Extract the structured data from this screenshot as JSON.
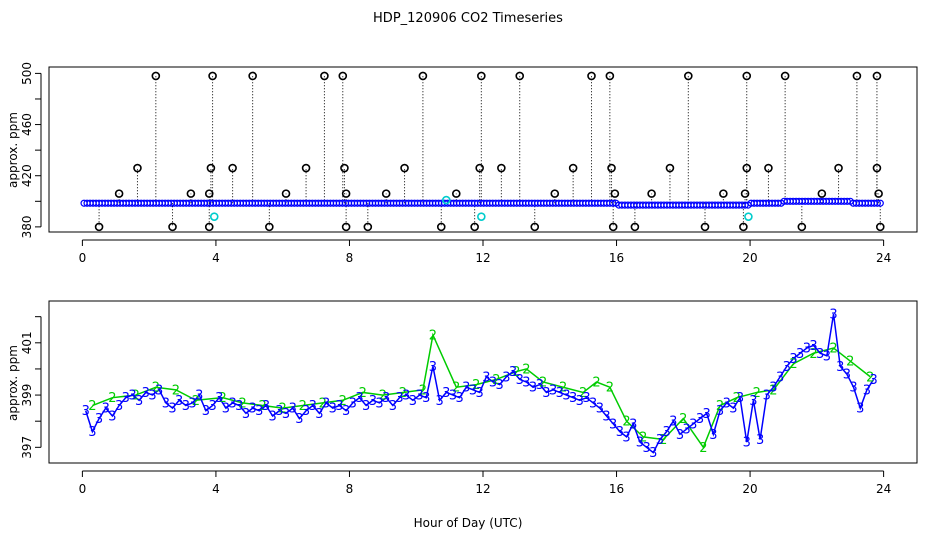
{
  "chart_data": {
    "type": "scatter",
    "title": "HDP_120906  CO2 Timeseries",
    "xlabel": "Hour of Day (UTC)",
    "colors": {
      "lev3": "#0000ff",
      "lev2": "#00cc00",
      "spike": "#000000",
      "spike_cyan": "#00cccc"
    },
    "x_ticks": [
      "0",
      "4",
      "8",
      "12",
      "16",
      "20",
      "24"
    ],
    "panels": [
      {
        "name": "full-range",
        "ylabel": "approx. ppm",
        "xlim": [
          -1,
          25
        ],
        "ylim": [
          376,
          505
        ],
        "y_ticks": [
          "380",
          "420",
          "460",
          "500"
        ],
        "y_ticks_minor": [
          "400",
          "440",
          "480"
        ],
        "baseline_ppm": 398.5,
        "spikes_high": [
          {
            "x": 2.2,
            "y": 498
          },
          {
            "x": 3.9,
            "y": 498
          },
          {
            "x": 5.1,
            "y": 498
          },
          {
            "x": 7.25,
            "y": 498
          },
          {
            "x": 7.8,
            "y": 498
          },
          {
            "x": 10.2,
            "y": 498
          },
          {
            "x": 11.95,
            "y": 498
          },
          {
            "x": 13.1,
            "y": 498
          },
          {
            "x": 15.25,
            "y": 498
          },
          {
            "x": 15.8,
            "y": 498
          },
          {
            "x": 18.15,
            "y": 498
          },
          {
            "x": 19.9,
            "y": 498
          },
          {
            "x": 21.05,
            "y": 498
          },
          {
            "x": 23.2,
            "y": 498
          },
          {
            "x": 23.8,
            "y": 498
          }
        ],
        "spikes_mid": [
          {
            "x": 1.65,
            "y": 426
          },
          {
            "x": 3.85,
            "y": 426
          },
          {
            "x": 4.5,
            "y": 426
          },
          {
            "x": 6.7,
            "y": 426
          },
          {
            "x": 7.85,
            "y": 426
          },
          {
            "x": 9.65,
            "y": 426
          },
          {
            "x": 11.9,
            "y": 426
          },
          {
            "x": 12.55,
            "y": 426
          },
          {
            "x": 14.7,
            "y": 426
          },
          {
            "x": 15.85,
            "y": 426
          },
          {
            "x": 17.6,
            "y": 426
          },
          {
            "x": 19.9,
            "y": 426
          },
          {
            "x": 20.55,
            "y": 426
          },
          {
            "x": 22.65,
            "y": 426
          },
          {
            "x": 23.8,
            "y": 426
          }
        ],
        "spikes_low": [
          {
            "x": 1.1,
            "y": 406
          },
          {
            "x": 3.25,
            "y": 406
          },
          {
            "x": 3.8,
            "y": 406
          },
          {
            "x": 6.1,
            "y": 406
          },
          {
            "x": 7.9,
            "y": 406
          },
          {
            "x": 9.1,
            "y": 406
          },
          {
            "x": 11.2,
            "y": 406
          },
          {
            "x": 14.15,
            "y": 406
          },
          {
            "x": 15.95,
            "y": 406
          },
          {
            "x": 17.05,
            "y": 406
          },
          {
            "x": 19.2,
            "y": 406
          },
          {
            "x": 19.85,
            "y": 406
          },
          {
            "x": 22.15,
            "y": 406
          },
          {
            "x": 23.85,
            "y": 406
          }
        ],
        "dips": [
          {
            "x": 0.5,
            "y": 380
          },
          {
            "x": 2.7,
            "y": 380
          },
          {
            "x": 3.8,
            "y": 380
          },
          {
            "x": 5.6,
            "y": 380
          },
          {
            "x": 7.9,
            "y": 380
          },
          {
            "x": 8.55,
            "y": 380
          },
          {
            "x": 10.75,
            "y": 380
          },
          {
            "x": 11.75,
            "y": 380
          },
          {
            "x": 13.55,
            "y": 380
          },
          {
            "x": 15.9,
            "y": 380
          },
          {
            "x": 16.55,
            "y": 380
          },
          {
            "x": 18.65,
            "y": 380
          },
          {
            "x": 19.8,
            "y": 380
          },
          {
            "x": 21.55,
            "y": 380
          },
          {
            "x": 23.9,
            "y": 380
          }
        ],
        "cyan_points": [
          {
            "x": 3.95,
            "y": 388
          },
          {
            "x": 11.95,
            "y": 388
          },
          {
            "x": 19.95,
            "y": 388
          },
          {
            "x": 10.9,
            "y": 401
          }
        ]
      },
      {
        "name": "zoomed",
        "ylabel": "approx. ppm",
        "xlim": [
          -1,
          25
        ],
        "ylim": [
          396.4,
          402.6
        ],
        "y_ticks": [
          "397",
          "399",
          "401"
        ],
        "y_ticks_minor": [
          "398",
          "400",
          "402"
        ],
        "series": [
          {
            "name": "3",
            "marker": "3",
            "x": [
              0.1,
              0.3,
              0.5,
              0.7,
              0.9,
              1.1,
              1.3,
              1.5,
              1.7,
              1.9,
              2.1,
              2.3,
              2.5,
              2.7,
              2.9,
              3.1,
              3.3,
              3.5,
              3.7,
              3.9,
              4.1,
              4.3,
              4.5,
              4.7,
              4.9,
              5.1,
              5.3,
              5.5,
              5.7,
              5.9,
              6.1,
              6.3,
              6.5,
              6.7,
              6.9,
              7.1,
              7.3,
              7.5,
              7.7,
              7.9,
              8.1,
              8.3,
              8.5,
              8.7,
              8.9,
              9.1,
              9.3,
              9.5,
              9.7,
              9.9,
              10.1,
              10.3,
              10.5,
              10.7,
              10.9,
              11.1,
              11.3,
              11.5,
              11.7,
              11.9,
              12.1,
              12.3,
              12.5,
              12.7,
              12.9,
              13.1,
              13.3,
              13.5,
              13.7,
              13.9,
              14.1,
              14.3,
              14.5,
              14.7,
              14.9,
              15.1,
              15.3,
              15.5,
              15.7,
              15.9,
              16.1,
              16.3,
              16.5,
              16.7,
              16.9,
              17.1,
              17.3,
              17.5,
              17.7,
              17.9,
              18.1,
              18.3,
              18.5,
              18.7,
              18.9,
              19.1,
              19.3,
              19.5,
              19.7,
              19.9,
              20.1,
              20.3,
              20.5,
              20.7,
              20.9,
              21.1,
              21.3,
              21.5,
              21.7,
              21.9,
              22.1,
              22.3,
              22.5,
              22.7,
              22.9,
              23.1,
              23.3,
              23.5,
              23.7
            ],
            "values": [
              398.4,
              397.6,
              398.1,
              398.5,
              398.2,
              398.6,
              398.9,
              399.0,
              398.8,
              399.1,
              399.0,
              399.2,
              398.7,
              398.5,
              398.8,
              398.6,
              398.7,
              399.0,
              398.4,
              398.6,
              398.9,
              398.5,
              398.7,
              398.6,
              398.3,
              398.5,
              398.4,
              398.6,
              398.2,
              398.4,
              398.3,
              398.5,
              398.1,
              398.4,
              398.6,
              398.3,
              398.7,
              398.5,
              398.6,
              398.4,
              398.7,
              398.9,
              398.6,
              398.8,
              398.7,
              398.9,
              398.6,
              398.9,
              399.0,
              398.8,
              399.0,
              398.9,
              400.1,
              398.8,
              399.1,
              399.0,
              398.9,
              399.3,
              399.2,
              399.1,
              399.7,
              399.5,
              399.4,
              399.7,
              399.9,
              399.6,
              399.5,
              399.3,
              399.4,
              399.1,
              399.2,
              399.1,
              399.0,
              398.9,
              398.8,
              398.9,
              398.7,
              398.5,
              398.2,
              397.9,
              397.6,
              397.4,
              397.9,
              397.2,
              397.0,
              396.8,
              397.3,
              397.6,
              398.0,
              397.5,
              397.7,
              397.9,
              398.1,
              398.3,
              397.5,
              398.4,
              398.7,
              398.5,
              398.9,
              397.2,
              398.8,
              397.3,
              399.0,
              399.3,
              399.7,
              400.1,
              400.4,
              400.6,
              400.8,
              400.9,
              400.6,
              400.5,
              402.1,
              400.1,
              399.8,
              399.3,
              398.5,
              399.2,
              399.6
            ],
            "label": "3"
          },
          {
            "name": "2",
            "marker": "2",
            "x": [
              0.3,
              0.9,
              1.6,
              2.2,
              2.8,
              3.4,
              4.2,
              4.8,
              5.4,
              6.0,
              6.6,
              7.2,
              7.8,
              8.4,
              9.0,
              9.6,
              10.2,
              10.5,
              11.2,
              11.8,
              12.4,
              13.0,
              13.3,
              13.8,
              14.4,
              15.0,
              15.4,
              15.8,
              16.3,
              16.8,
              17.4,
              18.0,
              18.6,
              19.1,
              19.6,
              20.2,
              20.7,
              21.3,
              21.9,
              22.5,
              23.0,
              23.6
            ],
            "values": [
              398.6,
              398.9,
              399.0,
              399.3,
              399.2,
              398.8,
              398.9,
              398.7,
              398.6,
              398.5,
              398.6,
              398.7,
              398.8,
              399.1,
              399.0,
              399.1,
              399.2,
              401.3,
              399.3,
              399.4,
              399.6,
              399.9,
              400.0,
              399.5,
              399.3,
              399.1,
              399.5,
              399.3,
              398.0,
              397.4,
              397.3,
              398.1,
              397.0,
              398.6,
              398.9,
              399.1,
              399.2,
              400.2,
              400.6,
              400.8,
              400.3,
              399.7
            ],
            "label": "2"
          }
        ]
      }
    ]
  }
}
